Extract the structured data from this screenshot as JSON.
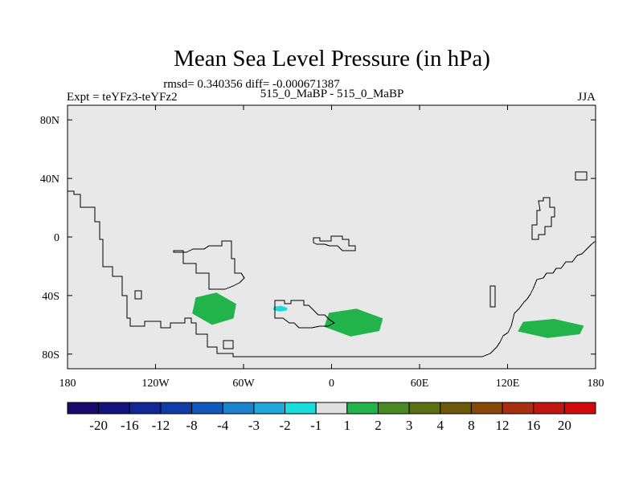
{
  "chart_data": {
    "type": "map",
    "title": "Mean Sea Level Pressure (in hPa)",
    "stats_text": "rmsd= 0.340356 diff= -0.000671387",
    "left_label": "Expt = teYFz3-teYFz2",
    "center_label": "515_0_MaBP - 515_0_MaBP",
    "right_label": "JJA",
    "xlim": [
      -180,
      180
    ],
    "ylim": [
      -90,
      90
    ],
    "x_ticks": [
      {
        "value": -180,
        "label": "180"
      },
      {
        "value": -120,
        "label": "120W"
      },
      {
        "value": -60,
        "label": "60W"
      },
      {
        "value": 0,
        "label": "0"
      },
      {
        "value": 60,
        "label": "60E"
      },
      {
        "value": 120,
        "label": "120E"
      },
      {
        "value": 180,
        "label": "180"
      }
    ],
    "y_ticks": [
      {
        "value": 80,
        "label": "80N"
      },
      {
        "value": 40,
        "label": "40N"
      },
      {
        "value": 0,
        "label": "0"
      },
      {
        "value": -40,
        "label": "40S"
      },
      {
        "value": -80,
        "label": "80S"
      }
    ],
    "colorbar": {
      "levels": [
        "-20",
        "-16",
        "-12",
        "-8",
        "-4",
        "-3",
        "-2",
        "-1",
        "1",
        "2",
        "3",
        "4",
        "8",
        "12",
        "16",
        "20"
      ],
      "colors": [
        "#1a0a6e",
        "#14147e",
        "#122896",
        "#103ca8",
        "#1158bc",
        "#1b82cc",
        "#20a8da",
        "#19dcdc",
        "#e0e0e0",
        "#22b34a",
        "#4a8a23",
        "#5c7012",
        "#6c5a08",
        "#8a4808",
        "#a83010",
        "#c01810",
        "#d20a0a"
      ]
    },
    "anomalies": [
      {
        "category": "1 to 2",
        "color": "#22b34a",
        "lon_range": [
          -95,
          -65
        ],
        "lat_range": [
          -60,
          -38
        ]
      },
      {
        "category": "1 to 2",
        "color": "#22b34a",
        "lon_range": [
          -5,
          35
        ],
        "lat_range": [
          -68,
          -49
        ]
      },
      {
        "category": "1 to 2",
        "color": "#22b34a",
        "lon_range": [
          127,
          172
        ],
        "lat_range": [
          -69,
          -56
        ]
      },
      {
        "category": "-2 to -1",
        "color": "#19dcdc",
        "lon_range": [
          -40,
          -30
        ],
        "lat_range": [
          -51,
          -47
        ]
      }
    ],
    "background_category": "-1 to 1",
    "background_color": "#e8e8e8"
  }
}
